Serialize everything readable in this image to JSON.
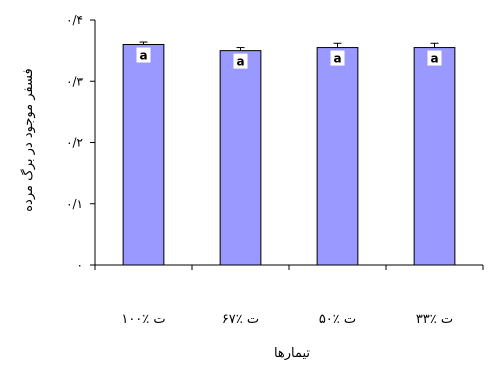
{
  "chart_data": {
    "type": "bar",
    "categories": [
      "ت ٪۱۰۰",
      "ت ٪۶۷",
      "ت ٪۵۰",
      "ت ٪۳۳"
    ],
    "values": [
      0.36,
      0.35,
      0.355,
      0.355
    ],
    "errors": [
      0.004,
      0.005,
      0.007,
      0.007
    ],
    "significance_letters": [
      "a",
      "a",
      "a",
      "a"
    ],
    "title": "",
    "xlabel": "تیمارها",
    "ylabel": "فسفر موجود در برگ مرده",
    "ylim": [
      0,
      0.4
    ],
    "yticks": [
      0,
      0.1,
      0.2,
      0.3,
      0.4
    ],
    "ytick_labels": [
      "۰",
      "۰/۱",
      "۰/۲",
      "۰/۳",
      "۰/۴"
    ],
    "grid": false,
    "legend": "none",
    "bar_fill_color": "#9999ff",
    "bar_edge_color": "#000000"
  }
}
